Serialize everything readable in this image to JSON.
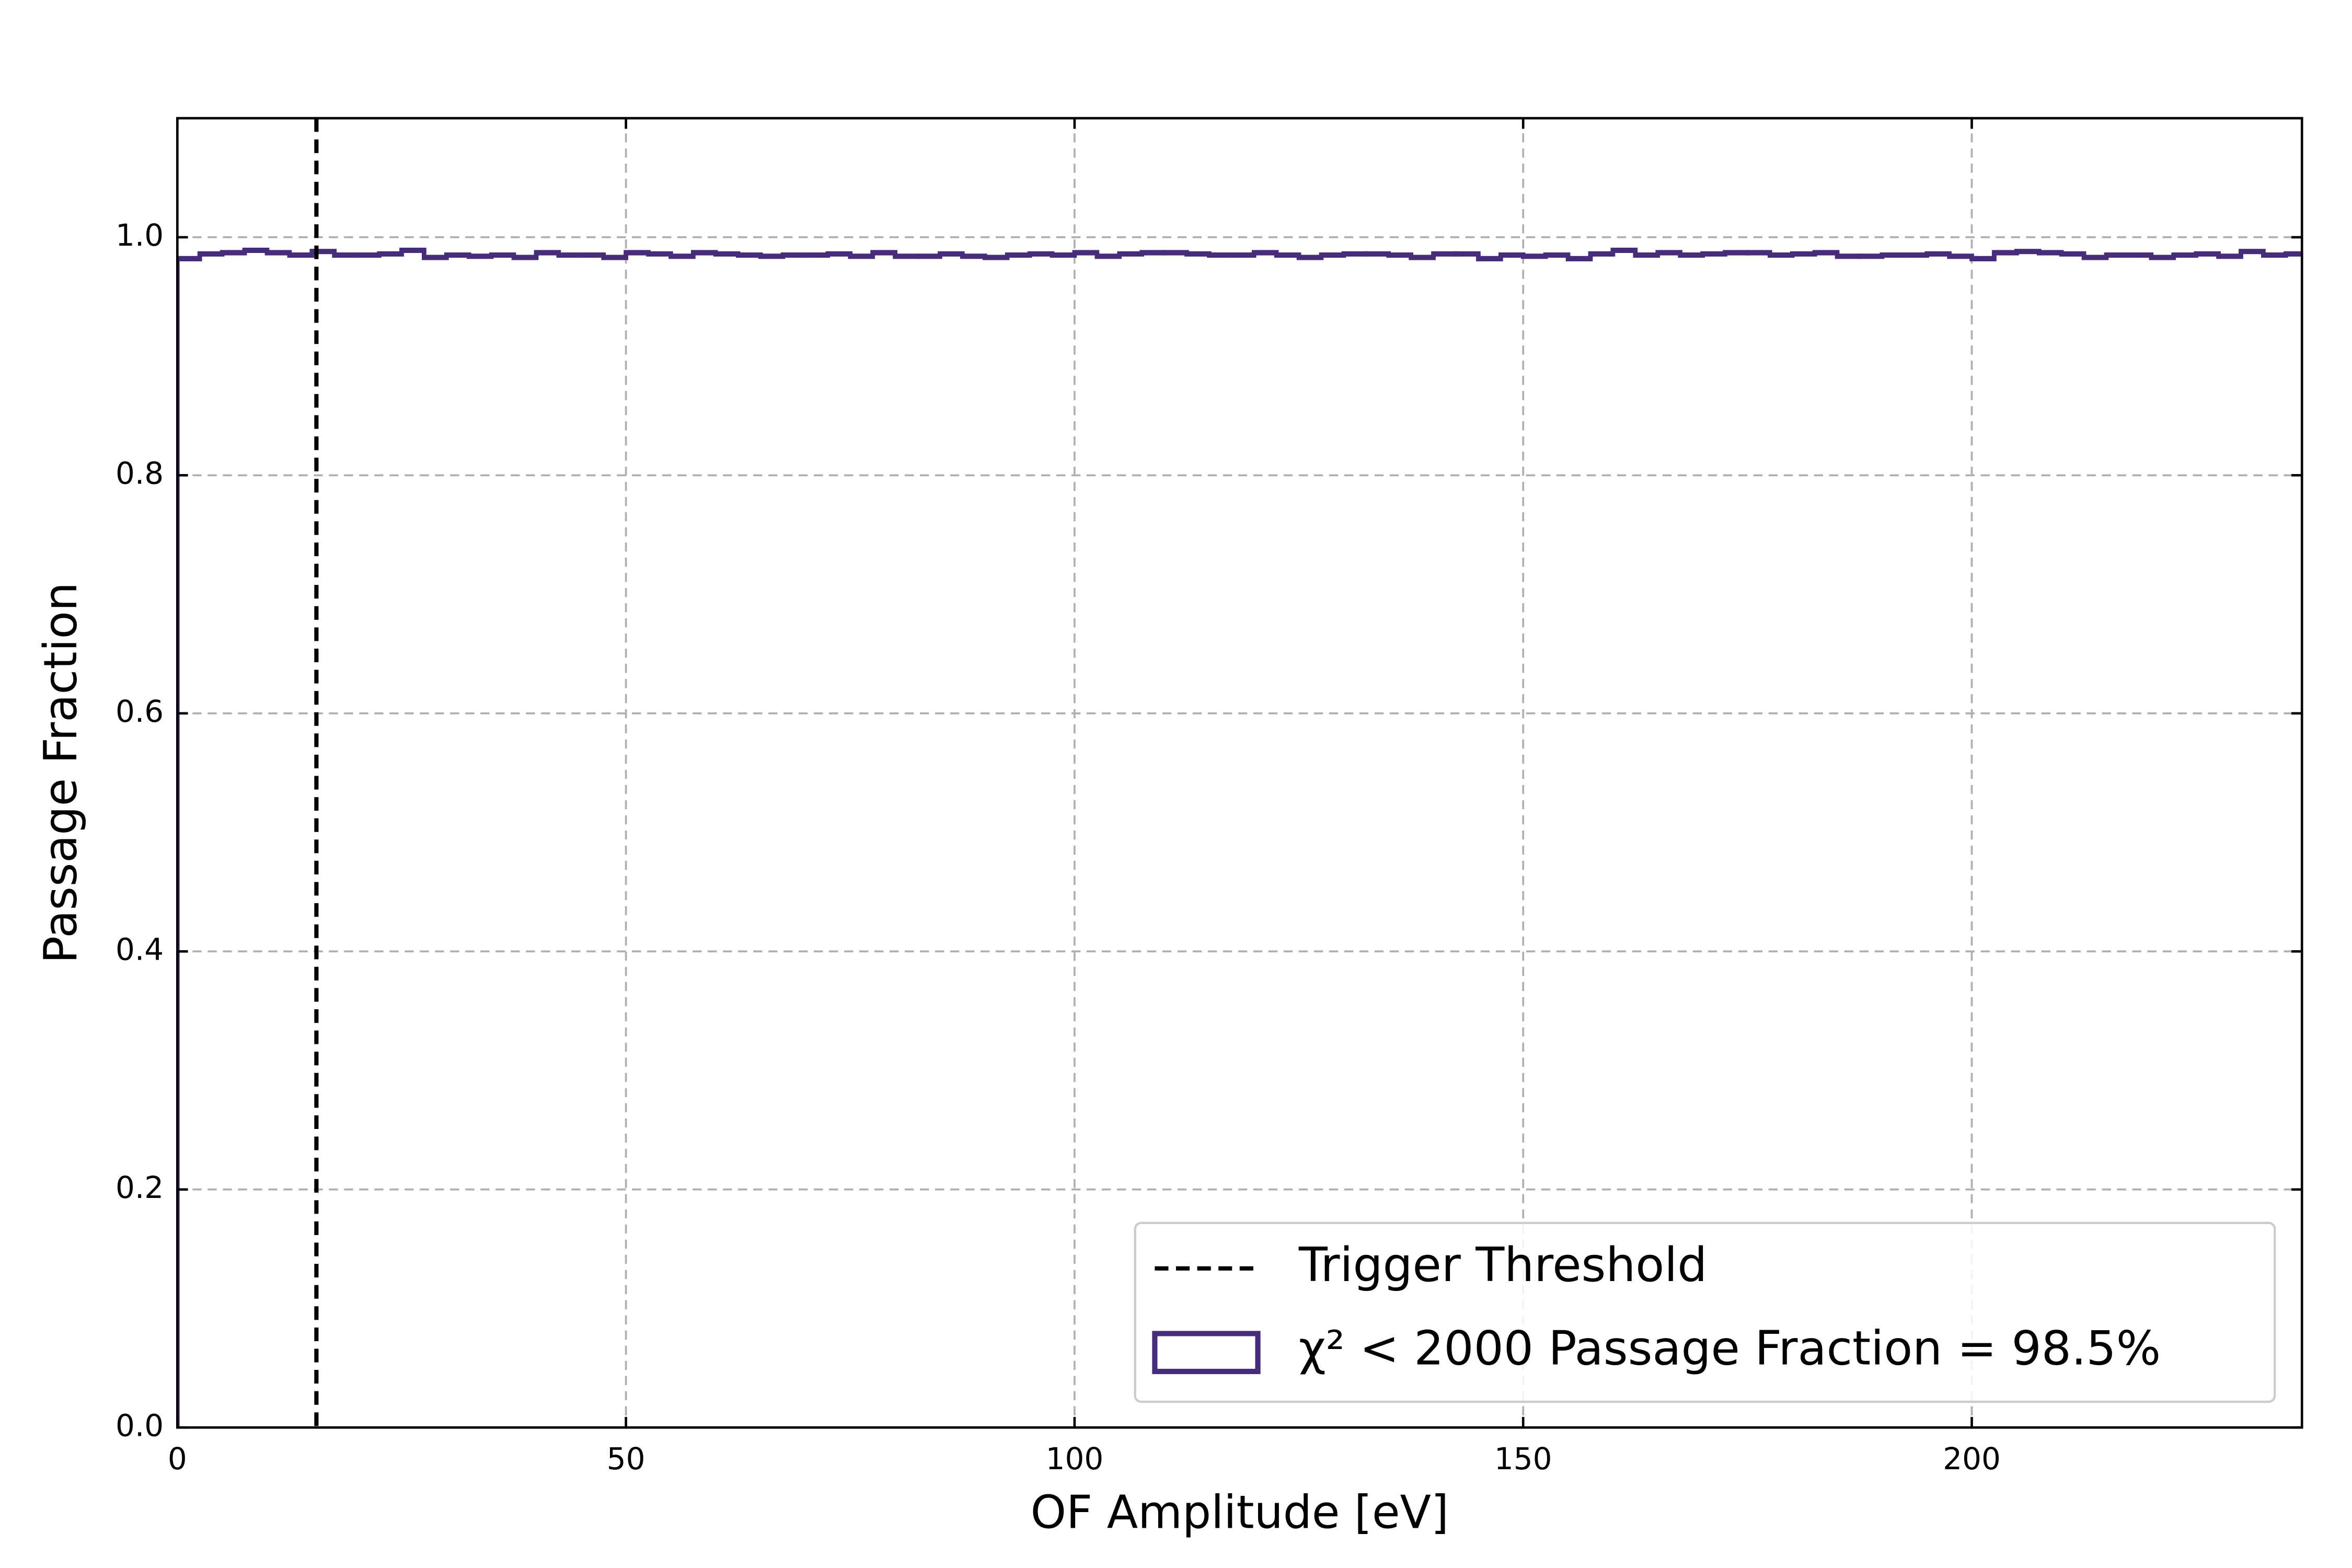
{
  "chart_data": {
    "type": "histogram",
    "xlabel": "OF Amplitude [eV]",
    "ylabel": "Passage Fraction",
    "xlim": [
      0,
      236.8
    ],
    "ylim": [
      0,
      1.1
    ],
    "xticks": [
      0,
      50,
      100,
      150,
      200
    ],
    "yticks": [
      {
        "value": 0,
        "label": "0.0"
      },
      {
        "value": 0.2,
        "label": "0.2"
      },
      {
        "value": 0.4,
        "label": "0.4"
      },
      {
        "value": 0.6,
        "label": "0.6"
      },
      {
        "value": 0.8,
        "label": "0.8"
      },
      {
        "value": 1,
        "label": "1.0"
      }
    ],
    "grid": true,
    "legend_position": "lower right",
    "vlines": [
      {
        "x": 15.5,
        "label": "Trigger Threshold",
        "color": "#000000"
      }
    ],
    "series": [
      {
        "name": "χ² < 2000 Passage Fraction = 98.5%",
        "color": "#472c7a",
        "bins": [
          0,
          2.5,
          5,
          7.5,
          10,
          12.5,
          15,
          17.5,
          20,
          22.5,
          25,
          27.5,
          30,
          32.5,
          35,
          37.5,
          40,
          42.5,
          45,
          47.5,
          50,
          52.5,
          55,
          57.5,
          60,
          62.5,
          65,
          67.5,
          70,
          72.5,
          75,
          77.5,
          80,
          82.5,
          85,
          87.5,
          90,
          92.5,
          95,
          97.5,
          100,
          102.5,
          105,
          107.5,
          110,
          112.5,
          115,
          117.5,
          120,
          122.5,
          125,
          127.5,
          130,
          132.5,
          135,
          137.5,
          140,
          142.5,
          145,
          147.5,
          150,
          152.5,
          155,
          157.5,
          160,
          162.5,
          165,
          167.5,
          170,
          172.5,
          175,
          177.5,
          180,
          182.5,
          185,
          187.5,
          190,
          192.5,
          195,
          197.5,
          200,
          202.5,
          205,
          207.5,
          210,
          212.5,
          215,
          217.5,
          220,
          222.5,
          225,
          227.5,
          230,
          232.5,
          235,
          237.5
        ],
        "values": [
          0.982,
          0.986,
          0.987,
          0.989,
          0.987,
          0.985,
          0.988,
          0.985,
          0.985,
          0.986,
          0.989,
          0.983,
          0.985,
          0.984,
          0.985,
          0.983,
          0.987,
          0.985,
          0.985,
          0.983,
          0.987,
          0.986,
          0.984,
          0.987,
          0.986,
          0.985,
          0.984,
          0.985,
          0.985,
          0.986,
          0.984,
          0.987,
          0.984,
          0.984,
          0.986,
          0.984,
          0.983,
          0.985,
          0.986,
          0.985,
          0.987,
          0.984,
          0.986,
          0.987,
          0.987,
          0.986,
          0.985,
          0.985,
          0.987,
          0.985,
          0.983,
          0.985,
          0.986,
          0.986,
          0.985,
          0.983,
          0.986,
          0.986,
          0.982,
          0.985,
          0.984,
          0.985,
          0.982,
          0.986,
          0.989,
          0.985,
          0.987,
          0.985,
          0.986,
          0.987,
          0.987,
          0.985,
          0.986,
          0.987,
          0.984,
          0.984,
          0.985,
          0.985,
          0.986,
          0.984,
          0.982,
          0.987,
          0.988,
          0.987,
          0.986,
          0.983,
          0.985,
          0.985,
          0.983,
          0.985,
          0.986,
          0.984,
          0.988,
          0.985,
          0.986
        ]
      }
    ]
  }
}
